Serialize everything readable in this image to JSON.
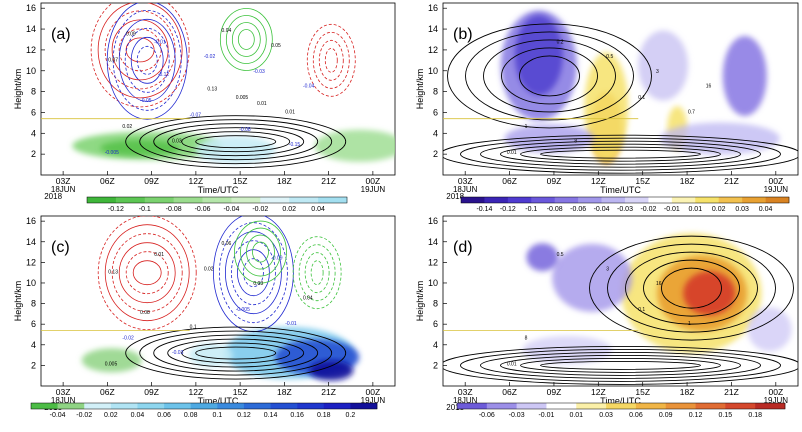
{
  "chart_data": [
    {
      "panel_label": "(a)",
      "type": "contour",
      "ylabel": "Height/km",
      "xlabel": "Time/UTC",
      "yticks": [
        2,
        4,
        6,
        8,
        10,
        12,
        14,
        16
      ],
      "ylim": [
        0,
        16.5
      ],
      "xticks": [
        "03Z",
        "06Z",
        "09Z",
        "12Z",
        "15Z",
        "18Z",
        "21Z",
        "00Z"
      ],
      "xsub_start": [
        "18JUN",
        "2018"
      ],
      "xsub_end": "19JUN",
      "colorbar_ticks": [
        "-0.12",
        "-0.1",
        "-0.08",
        "-0.06",
        "-0.04",
        "-0.02",
        "0.02",
        "0.04"
      ],
      "contour_labels": [
        "-0.005",
        "0.005",
        "-0.01",
        "0.01",
        "-0.02",
        "0.02",
        "-0.03",
        "0.03",
        "-0.04",
        "0.04",
        "-0.05",
        "0.05",
        "-0.07",
        "0.07",
        "-0.08",
        "-0.12",
        "-0.15",
        "0.13",
        "0.09",
        "0.01"
      ]
    },
    {
      "panel_label": "(b)",
      "type": "contour",
      "ylabel": "Height/km",
      "xlabel": "Time/UTC",
      "yticks": [
        2,
        4,
        6,
        8,
        10,
        12,
        14,
        16
      ],
      "ylim": [
        0,
        16.5
      ],
      "xticks": [
        "03Z",
        "06Z",
        "09Z",
        "12Z",
        "15Z",
        "18Z",
        "21Z",
        "00Z"
      ],
      "xsub_start": [
        "18JUN",
        "2018"
      ],
      "xsub_end": "19JUN",
      "colorbar_ticks": [
        "-0.14",
        "-0.12",
        "-0.1",
        "-0.08",
        "-0.06",
        "-0.04",
        "-0.03",
        "-0.02",
        "-0.01",
        "0.01",
        "0.02",
        "0.03",
        "0.04"
      ],
      "contour_labels": [
        "0.01",
        "0.1",
        "0.2",
        "0.7",
        "0.5",
        "1",
        "3",
        "8",
        "16"
      ]
    },
    {
      "panel_label": "(c)",
      "type": "contour",
      "ylabel": "Height/km",
      "xlabel": "Time/UTC",
      "yticks": [
        2,
        4,
        6,
        8,
        10,
        12,
        14,
        16
      ],
      "ylim": [
        0,
        16.5
      ],
      "xticks": [
        "03Z",
        "06Z",
        "09Z",
        "12Z",
        "15Z",
        "18Z",
        "21Z",
        "00Z"
      ],
      "xsub_start": [
        "18JUN",
        "2018"
      ],
      "xsub_end": "19JUN",
      "colorbar_ticks": [
        "-0.04",
        "-0.02",
        "0.02",
        "0.04",
        "0.06",
        "0.08",
        "0.1",
        "0.12",
        "0.14",
        "0.16",
        "0.18",
        "0.2"
      ],
      "contour_labels": [
        "0.005",
        "-0.005",
        "0.01",
        "-0.01",
        "0.02",
        "-0.02",
        "0.03",
        "-0.03",
        "0.04",
        "0.06",
        "0.08",
        "-0.09",
        "0.1",
        "0.13"
      ]
    },
    {
      "panel_label": "(d)",
      "type": "contour",
      "ylabel": "Height/km",
      "xlabel": "Time/UTC",
      "yticks": [
        2,
        4,
        6,
        8,
        10,
        12,
        14,
        16
      ],
      "ylim": [
        0,
        16.5
      ],
      "xticks": [
        "03Z",
        "06Z",
        "09Z",
        "12Z",
        "15Z",
        "18Z",
        "21Z",
        "00Z"
      ],
      "xsub_start": [
        "18JUN",
        "2018"
      ],
      "xsub_end": "19JUN",
      "colorbar_ticks": [
        "-0.06",
        "-0.03",
        "-0.01",
        "0.01",
        "0.03",
        "0.06",
        "0.09",
        "0.12",
        "0.15",
        "0.18"
      ],
      "contour_labels": [
        "0.01",
        "0.1",
        "0.5",
        "1",
        "3",
        "8",
        "16"
      ]
    }
  ],
  "colors": {
    "neg_green_dark": "#56c24a",
    "neg_green_light": "#c9ecbd",
    "pos_blue_light": "#c6ecf6",
    "pos_blue_dark": "#1f2fd6",
    "purple_dark": "#2b1bb8",
    "purple_light": "#c9c3f3",
    "yellow": "#f6e26a",
    "orange": "#e89a2a",
    "red": "#d53a2a",
    "contour_black": "#000000",
    "contour_red": "#d7201f",
    "contour_green": "#3cc23c",
    "contour_blue": "#2028d0",
    "freezing_line": "#d8c23a"
  }
}
